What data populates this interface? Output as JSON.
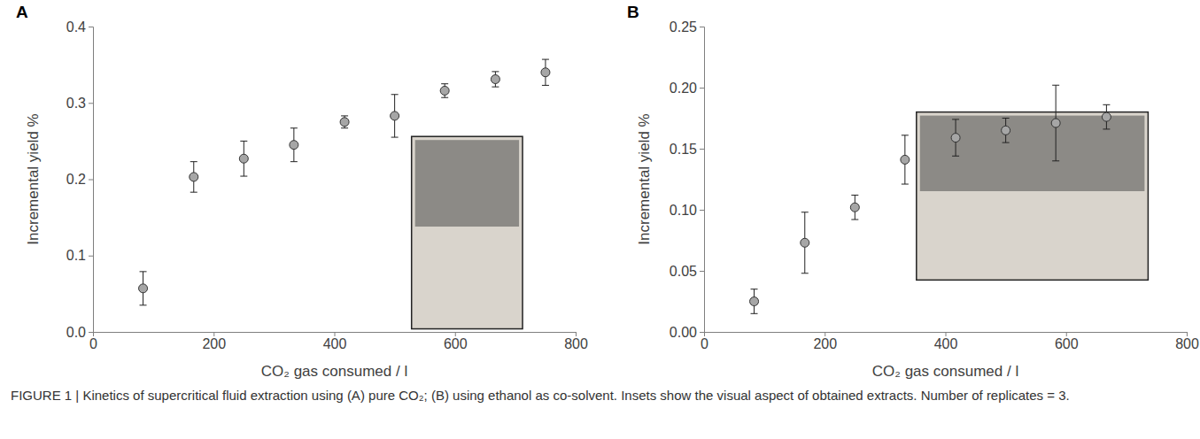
{
  "caption": "FIGURE 1 | Kinetics of supercritical fluid extraction using (A) pure CO₂; (B) using ethanol as co-solvent. Insets show the visual aspect of obtained extracts. Number of replicates = 3.",
  "chart_data": [
    {
      "type": "scatter",
      "panel_label": "A",
      "x_label": "CO₂ gas consumed / l",
      "y_label": "Incremental yield %",
      "x": [
        83,
        167,
        250,
        333,
        417,
        500,
        583,
        667,
        750
      ],
      "values": [
        0.057,
        0.203,
        0.227,
        0.245,
        0.275,
        0.283,
        0.316,
        0.331,
        0.34
      ],
      "errors": [
        0.022,
        0.02,
        0.023,
        0.022,
        0.008,
        0.028,
        0.009,
        0.01,
        0.017
      ],
      "color": "#a6a6a6",
      "marker": "circle",
      "xlim": [
        0,
        800
      ],
      "xticks": [
        0,
        200,
        400,
        600,
        800
      ],
      "ylim": [
        0,
        0.4
      ],
      "yticks": [
        {
          "value": 0,
          "label": "0.0"
        },
        0.1,
        0.2,
        0.3,
        0.4
      ],
      "grid": false
    },
    {
      "type": "scatter",
      "panel_label": "B",
      "x_label": "CO₂ gas consumed / l",
      "y_label": "Incremental yield %",
      "x": [
        83,
        167,
        250,
        333,
        417,
        500,
        583,
        667
      ],
      "values": [
        0.025,
        0.073,
        0.102,
        0.141,
        0.159,
        0.165,
        0.171,
        0.176
      ],
      "errors": [
        0.01,
        0.025,
        0.01,
        0.02,
        0.015,
        0.01,
        0.031,
        0.01
      ],
      "color": "#a6a6a6",
      "marker": "circle",
      "xlim": [
        0,
        800
      ],
      "xticks": [
        0,
        200,
        400,
        600,
        800
      ],
      "ylim": [
        0,
        0.25
      ],
      "yticks": [
        {
          "value": 0,
          "label": "0.00"
        },
        0.05,
        {
          "value": 0.1,
          "label": "0.10"
        },
        0.15,
        {
          "value": 0.2,
          "label": "0.20"
        },
        0.25
      ],
      "grid": false
    }
  ]
}
